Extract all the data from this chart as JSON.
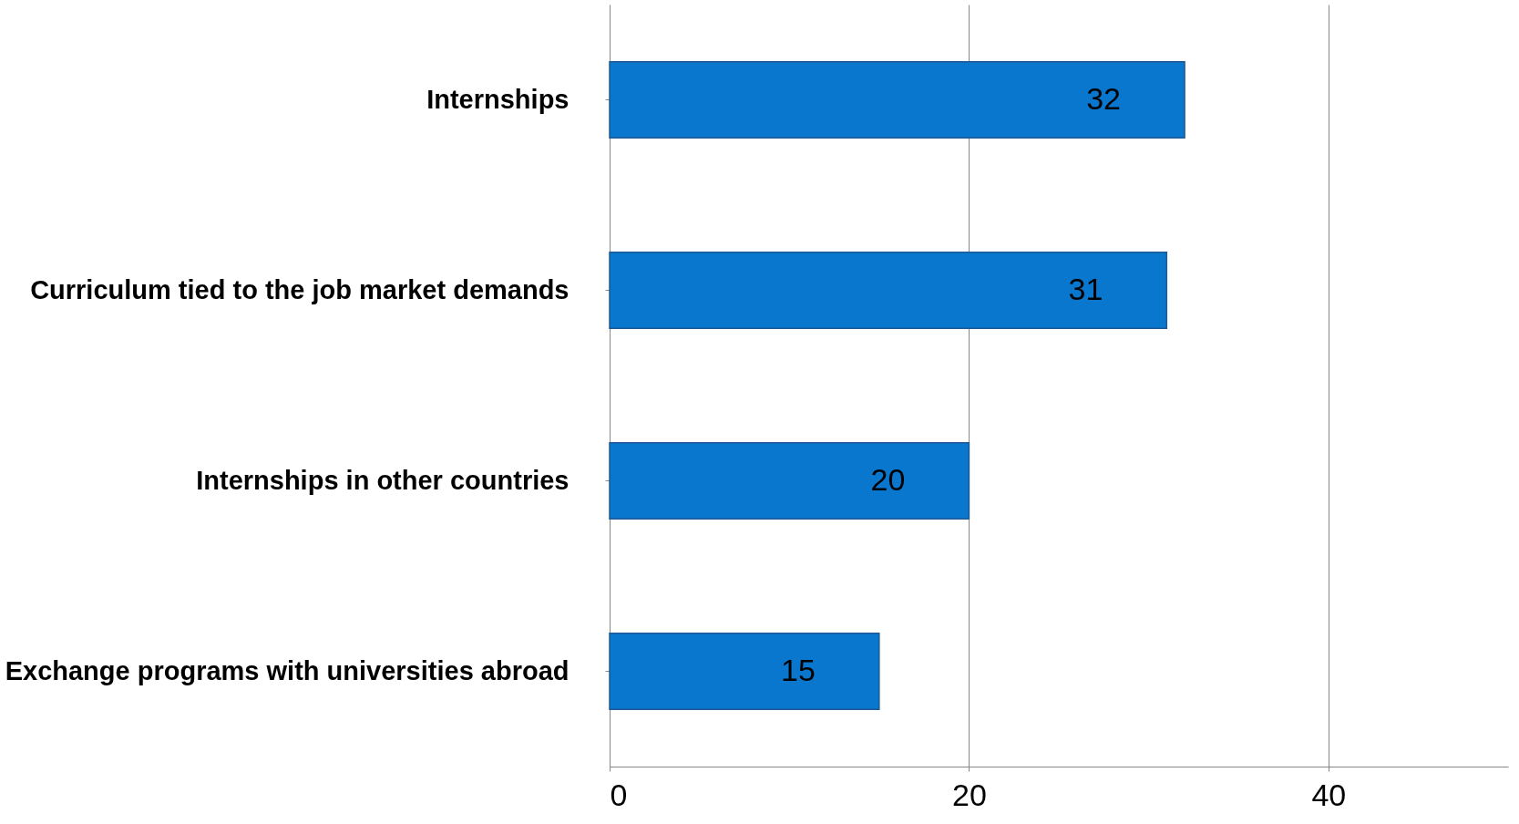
{
  "chart_data": {
    "type": "bar",
    "orientation": "horizontal",
    "categories": [
      "Internships",
      "Curriculum tied to the job market demands",
      "Internships in other countries",
      "Exchange programs with universities abroad"
    ],
    "values": [
      32,
      31,
      20,
      15
    ],
    "color": "#0a77cf",
    "xlim": [
      0,
      50
    ],
    "xticks": [
      0,
      20,
      40
    ],
    "grid": "x",
    "data_labels": true
  }
}
